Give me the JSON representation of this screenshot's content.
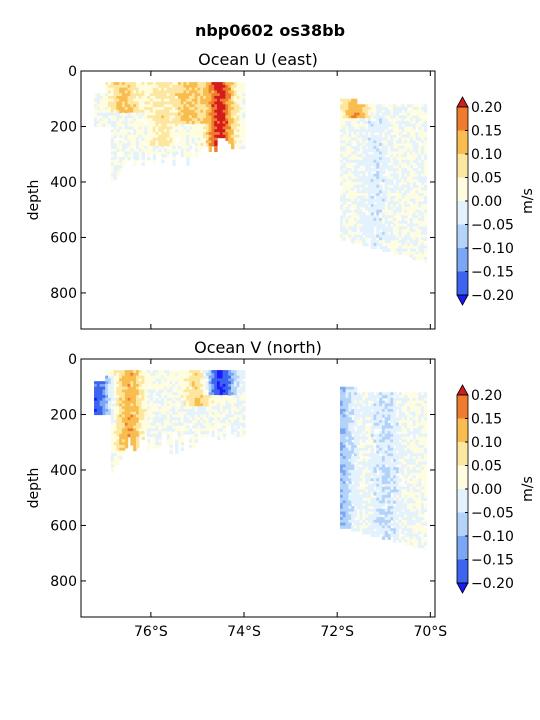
{
  "figure_title": "nbp0602 os38bb",
  "colorbar": {
    "levels": [
      -0.2,
      -0.15,
      -0.1,
      -0.05,
      0.0,
      0.05,
      0.1,
      0.15,
      0.2
    ],
    "tick_labels": [
      "−0.20",
      "−0.15",
      "−0.10",
      "−0.05",
      "0.00",
      "0.05",
      "0.10",
      "0.15",
      "0.20"
    ],
    "unit_label": "m/s",
    "colors": [
      "#1a1aff",
      "#3c64f0",
      "#7aa6f4",
      "#b3d3fa",
      "#e4f2fd",
      "#fffde0",
      "#fde7a0",
      "#f9bd4f",
      "#ef7b2e",
      "#d41c1c"
    ],
    "extend": "both"
  },
  "chart_data": [
    {
      "type": "heatmap",
      "title": "Ocean U (east)",
      "ylabel": "depth",
      "xlabel": "",
      "xlim": [
        -77.5,
        -69.9
      ],
      "ylim": [
        930,
        0
      ],
      "yticks": [
        0,
        200,
        400,
        600,
        800
      ],
      "xticks": [
        -76,
        -74,
        -72,
        -70
      ],
      "xtick_labels": [
        "76°S",
        "74°S",
        "72°S",
        "70°S"
      ],
      "grid": false,
      "unit": "m/s",
      "x_data_range": [
        -77.2,
        -70.1
      ],
      "depth_data_range": [
        40,
        680
      ],
      "features": [
        {
          "lat": -76.6,
          "depth_top": 60,
          "depth_bottom": 120,
          "value": 0.12
        },
        {
          "lat": -75.8,
          "depth_top": 50,
          "depth_bottom": 240,
          "value": 0.07
        },
        {
          "lat": -75.2,
          "depth_top": 60,
          "depth_bottom": 160,
          "value": 0.12
        },
        {
          "lat": -74.55,
          "depth_top": 40,
          "depth_bottom": 300,
          "value": 0.22
        },
        {
          "lat": -71.6,
          "depth_top": 60,
          "depth_bottom": 140,
          "value": 0.15
        },
        {
          "lat": -71.2,
          "depth_top": 120,
          "depth_bottom": 680,
          "value": -0.03
        }
      ]
    },
    {
      "type": "heatmap",
      "title": "Ocean V (north)",
      "ylabel": "depth",
      "xlabel": "",
      "xlim": [
        -77.5,
        -69.9
      ],
      "ylim": [
        930,
        0
      ],
      "yticks": [
        0,
        200,
        400,
        600,
        800
      ],
      "xticks": [
        -76,
        -74,
        -72,
        -70
      ],
      "xtick_labels": [
        "76°S",
        "74°S",
        "72°S",
        "70°S"
      ],
      "grid": false,
      "unit": "m/s",
      "x_data_range": [
        -77.2,
        -70.1
      ],
      "depth_data_range": [
        40,
        680
      ],
      "features": [
        {
          "lat": -77.2,
          "depth_top": 80,
          "depth_bottom": 200,
          "value": -0.18
        },
        {
          "lat": -76.5,
          "depth_top": 50,
          "depth_bottom": 300,
          "value": 0.13
        },
        {
          "lat": -75.0,
          "depth_top": 40,
          "depth_bottom": 140,
          "value": 0.1
        },
        {
          "lat": -74.55,
          "depth_top": 40,
          "depth_bottom": 100,
          "value": -0.22
        },
        {
          "lat": -72.0,
          "depth_top": 100,
          "depth_bottom": 660,
          "value": -0.1
        },
        {
          "lat": -71.0,
          "depth_top": 120,
          "depth_bottom": 680,
          "value": -0.05
        }
      ]
    }
  ]
}
